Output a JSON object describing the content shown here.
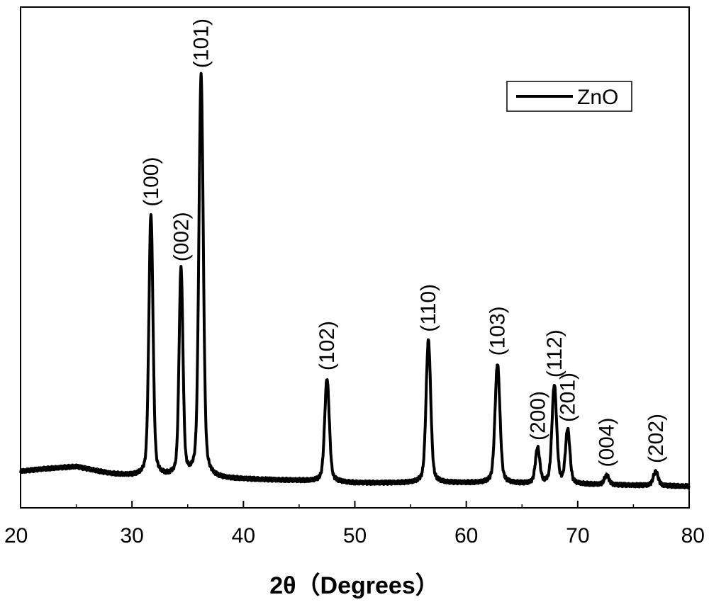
{
  "chart_data": {
    "type": "line",
    "xlabel": "2θ（Degrees）",
    "ylabel": "",
    "xlim": [
      20,
      80
    ],
    "ylim": [
      0,
      100
    ],
    "x_ticks": [
      20,
      30,
      40,
      50,
      60,
      70,
      80
    ],
    "grid": false,
    "legend": {
      "position": "top-right",
      "entries": [
        "ZnO"
      ]
    },
    "series": [
      {
        "name": "ZnO",
        "color": "#000000",
        "baseline": [
          [
            20,
            7.5
          ],
          [
            22,
            8.0
          ],
          [
            25,
            8.5
          ],
          [
            28,
            7.0
          ],
          [
            30,
            6.5
          ],
          [
            35,
            6.0
          ],
          [
            40,
            5.8
          ],
          [
            45,
            5.5
          ],
          [
            50,
            5.0
          ],
          [
            55,
            5.0
          ],
          [
            60,
            5.0
          ],
          [
            65,
            4.8
          ],
          [
            70,
            4.7
          ],
          [
            75,
            4.5
          ],
          [
            80,
            4.3
          ]
        ],
        "peaks": [
          {
            "x": 31.7,
            "y": 56.0,
            "width": 0.32,
            "label": "(100)"
          },
          {
            "x": 34.4,
            "y": 44.5,
            "width": 0.3,
            "label": "(002)"
          },
          {
            "x": 36.2,
            "y": 86.0,
            "width": 0.34,
            "label": "(101)"
          },
          {
            "x": 47.5,
            "y": 22.0,
            "width": 0.36,
            "label": "(102)"
          },
          {
            "x": 56.6,
            "y": 30.5,
            "width": 0.36,
            "label": "(110)"
          },
          {
            "x": 62.8,
            "y": 25.5,
            "width": 0.38,
            "label": "(103)"
          },
          {
            "x": 66.4,
            "y": 7.5,
            "width": 0.34,
            "label": "(200)"
          },
          {
            "x": 67.9,
            "y": 21.0,
            "width": 0.36,
            "label": "(112)"
          },
          {
            "x": 69.1,
            "y": 11.5,
            "width": 0.34,
            "label": "(201)"
          },
          {
            "x": 72.6,
            "y": 2.0,
            "width": 0.36,
            "label": "(004)"
          },
          {
            "x": 77.0,
            "y": 3.0,
            "width": 0.38,
            "label": "(202)"
          }
        ]
      }
    ]
  }
}
